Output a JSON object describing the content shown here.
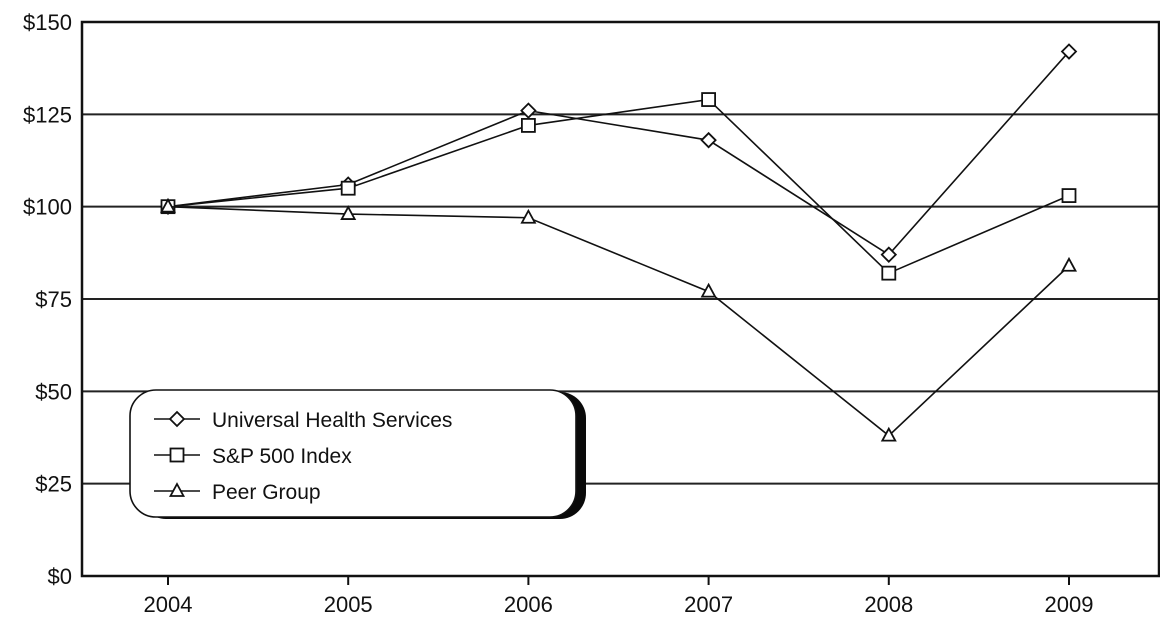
{
  "chart_data": {
    "type": "line",
    "title": "",
    "xlabel": "",
    "ylabel": "",
    "categories": [
      "2004",
      "2005",
      "2006",
      "2007",
      "2008",
      "2009"
    ],
    "ylim": [
      0,
      150
    ],
    "y_ticks": [
      0,
      25,
      50,
      75,
      100,
      125,
      150
    ],
    "y_tick_labels": [
      "$0",
      "$25",
      "$50",
      "$75",
      "$100",
      "$125",
      "$150"
    ],
    "grid": "horizontal",
    "legend_position": "bottom-left",
    "series": [
      {
        "name": "Universal Health Services",
        "marker": "diamond",
        "values": [
          100,
          106,
          126,
          118,
          87,
          142
        ]
      },
      {
        "name": "S&P 500 Index",
        "marker": "square",
        "values": [
          100,
          105,
          122,
          129,
          82,
          103
        ]
      },
      {
        "name": "Peer Group",
        "marker": "triangle",
        "values": [
          100,
          98,
          97,
          77,
          38,
          84
        ]
      }
    ],
    "colors": {
      "line": "#111111",
      "grid": "#222222",
      "background": "#ffffff"
    }
  }
}
